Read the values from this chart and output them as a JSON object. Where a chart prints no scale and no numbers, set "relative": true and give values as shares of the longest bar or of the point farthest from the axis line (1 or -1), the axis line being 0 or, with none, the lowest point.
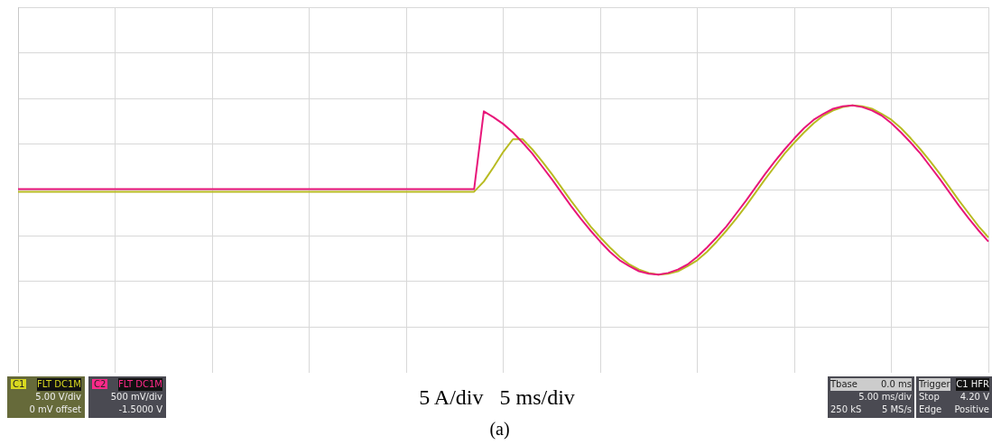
{
  "chart_data": {
    "type": "line",
    "relative": true,
    "grid": true,
    "legend": false,
    "marker": "none",
    "line_style": "solid",
    "categories": [
      null,
      null,
      null,
      null,
      null,
      null,
      null,
      null,
      null,
      null,
      null,
      null,
      null,
      null,
      null,
      null,
      null,
      null,
      null,
      null,
      null,
      null,
      null,
      null,
      null,
      null,
      null,
      null,
      null,
      null,
      null,
      null,
      null,
      null,
      null,
      null,
      null,
      null,
      null,
      null,
      null,
      null,
      null,
      null,
      null,
      null,
      null,
      null,
      null,
      null,
      null,
      null,
      null,
      null,
      null,
      null,
      null,
      null,
      null,
      null,
      null,
      null,
      null,
      null,
      null,
      null,
      null,
      null,
      null,
      null,
      null,
      null,
      null,
      null,
      null,
      null,
      null,
      null,
      null,
      null,
      null,
      null,
      null,
      null,
      null,
      null,
      null,
      null,
      null,
      null,
      null,
      null,
      null,
      null,
      null,
      null,
      null,
      null,
      null,
      null,
      null
    ],
    "series": [
      {
        "color": "#e8177a",
        "values": [
          0.01,
          0.01,
          0.01,
          0.01,
          0.01,
          0.01,
          0.01,
          0.01,
          0.01,
          0.01,
          0.01,
          0.01,
          0.01,
          0.01,
          0.01,
          0.01,
          0.01,
          0.01,
          0.01,
          0.01,
          0.01,
          0.01,
          0.01,
          0.01,
          0.01,
          0.01,
          0.01,
          0.01,
          0.01,
          0.01,
          0.01,
          0.01,
          0.01,
          0.01,
          0.01,
          0.01,
          0.01,
          0.01,
          0.01,
          0.01,
          0.01,
          0.01,
          0.01,
          0.01,
          0.01,
          0.01,
          0.01,
          0.01,
          0.93,
          0.86,
          0.78,
          0.68,
          0.56,
          0.43,
          0.28,
          0.13,
          -0.03,
          -0.19,
          -0.34,
          -0.48,
          -0.61,
          -0.73,
          -0.83,
          -0.9,
          -0.96,
          -0.99,
          -1.0,
          -0.98,
          -0.94,
          -0.88,
          -0.79,
          -0.68,
          -0.56,
          -0.43,
          -0.28,
          -0.13,
          0.03,
          0.19,
          0.34,
          0.48,
          0.61,
          0.73,
          0.83,
          0.9,
          0.96,
          0.99,
          1.0,
          0.98,
          0.94,
          0.88,
          0.79,
          0.68,
          0.56,
          0.43,
          0.28,
          0.13,
          -0.03,
          -0.19,
          -0.34,
          -0.48,
          -0.61
        ]
      },
      {
        "color": "#b8bb22",
        "values": [
          -0.02,
          -0.02,
          -0.02,
          -0.02,
          -0.02,
          -0.02,
          -0.02,
          -0.02,
          -0.02,
          -0.02,
          -0.02,
          -0.02,
          -0.02,
          -0.02,
          -0.02,
          -0.02,
          -0.02,
          -0.02,
          -0.02,
          -0.02,
          -0.02,
          -0.02,
          -0.02,
          -0.02,
          -0.02,
          -0.02,
          -0.02,
          -0.02,
          -0.02,
          -0.02,
          -0.02,
          -0.02,
          -0.02,
          -0.02,
          -0.02,
          -0.02,
          -0.02,
          -0.02,
          -0.02,
          -0.02,
          -0.02,
          -0.02,
          -0.02,
          -0.02,
          -0.02,
          -0.02,
          -0.02,
          -0.02,
          0.1,
          0.27,
          0.45,
          0.6,
          0.6,
          0.48,
          0.34,
          0.19,
          0.03,
          -0.13,
          -0.28,
          -0.43,
          -0.56,
          -0.68,
          -0.79,
          -0.88,
          -0.94,
          -0.98,
          -1.0,
          -0.99,
          -0.96,
          -0.9,
          -0.83,
          -0.73,
          -0.61,
          -0.48,
          -0.34,
          -0.19,
          -0.03,
          0.13,
          0.28,
          0.43,
          0.56,
          0.68,
          0.79,
          0.88,
          0.94,
          0.98,
          1.0,
          0.99,
          0.96,
          0.9,
          0.83,
          0.73,
          0.61,
          0.48,
          0.34,
          0.19,
          0.03,
          -0.13,
          -0.28,
          -0.43,
          -0.56
        ]
      }
    ],
    "annotations": [
      "C1",
      "FLT DC1M",
      "5.00 V/div",
      "0 mV offset",
      "C2",
      "FLT DC1M",
      "500 mV/div",
      "-1.5000 V",
      "5 A/div   5 ms/div",
      "Tbase",
      "0.0 ms",
      "5.00 ms/div",
      "250 kS",
      "5 MS/s",
      "Trigger",
      "C1",
      "HFR",
      "Stop",
      "4.20 V",
      "Edge",
      "Positive",
      "(a)"
    ]
  }
}
